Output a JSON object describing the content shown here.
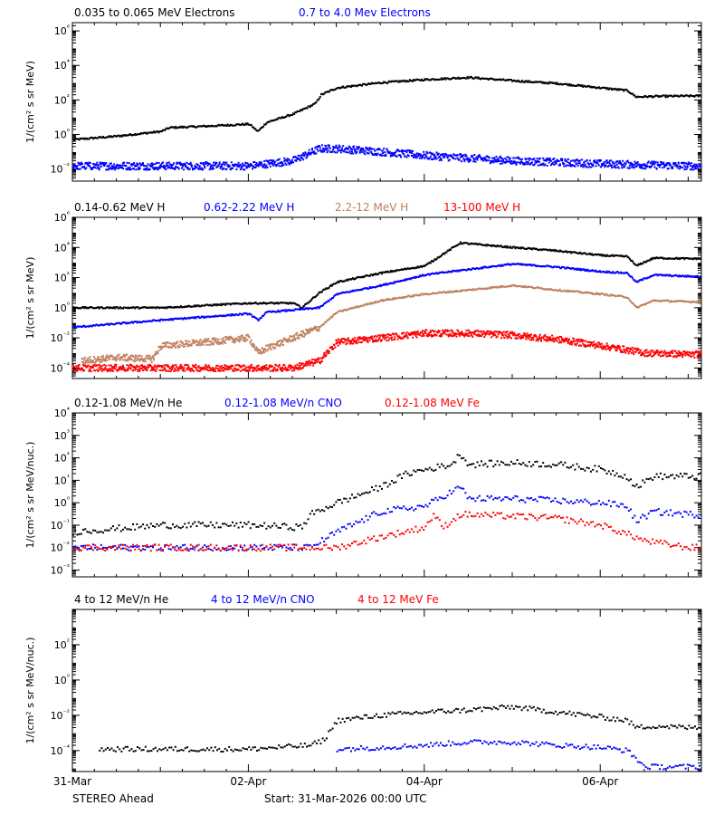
{
  "chart_data": [
    {
      "type": "scatter",
      "id": "electrons",
      "ylabel": "1/(cm² s sr MeV)",
      "yscale": "log",
      "ylim": [
        0.002,
        3000000
      ],
      "y_ticks": [
        {
          "value": 0.01,
          "label": "10⁻²"
        },
        {
          "value": 1,
          "label": "10⁰"
        },
        {
          "value": 100,
          "label": "10²"
        },
        {
          "value": 10000,
          "label": "10⁴"
        },
        {
          "value": 1000000,
          "label": "10⁶"
        }
      ],
      "series": [
        {
          "name": "0.035 to 0.065 MeV Electrons",
          "color": "#000000",
          "points": [
            [
              0,
              0.5
            ],
            [
              0.5,
              0.8
            ],
            [
              1,
              1.5
            ],
            [
              1.1,
              2.5
            ],
            [
              1.5,
              3
            ],
            [
              2,
              4
            ],
            [
              2.1,
              1.5
            ],
            [
              2.2,
              5
            ],
            [
              2.5,
              15
            ],
            [
              2.75,
              60
            ],
            [
              2.82,
              200
            ],
            [
              3,
              500
            ],
            [
              3.5,
              1000
            ],
            [
              4,
              1500
            ],
            [
              4.5,
              2000
            ],
            [
              5,
              1300
            ],
            [
              5.5,
              900
            ],
            [
              6,
              500
            ],
            [
              6.3,
              350
            ],
            [
              6.4,
              150
            ],
            [
              6.6,
              160
            ],
            [
              7,
              170
            ]
          ]
        },
        {
          "name": "0.7 to 4.0 Mev Electrons",
          "color": "#0000ff",
          "points": [
            [
              0,
              0.015
            ],
            [
              1,
              0.015
            ],
            [
              2,
              0.015
            ],
            [
              2.5,
              0.03
            ],
            [
              2.8,
              0.15
            ],
            [
              3,
              0.15
            ],
            [
              3.5,
              0.1
            ],
            [
              4,
              0.06
            ],
            [
              5,
              0.03
            ],
            [
              6,
              0.02
            ],
            [
              7,
              0.015
            ]
          ]
        }
      ]
    },
    {
      "type": "scatter",
      "id": "protons",
      "ylabel": "1/(cm² s sr MeV)",
      "yscale": "log",
      "ylim": [
        2e-05,
        1000000
      ],
      "y_ticks": [
        {
          "value": 0.0001,
          "label": "10⁻⁴"
        },
        {
          "value": 0.01,
          "label": "10⁻²"
        },
        {
          "value": 1,
          "label": "10⁰"
        },
        {
          "value": 100,
          "label": "10²"
        },
        {
          "value": 10000,
          "label": "10⁴"
        },
        {
          "value": 1000000,
          "label": "10⁶"
        }
      ],
      "series": [
        {
          "name": "0.14-0.62 MeV H",
          "color": "#000000",
          "points": [
            [
              0,
              1
            ],
            [
              1,
              1
            ],
            [
              2,
              2
            ],
            [
              2.5,
              2
            ],
            [
              2.6,
              1
            ],
            [
              2.8,
              10
            ],
            [
              3,
              50
            ],
            [
              3.5,
              200
            ],
            [
              4,
              600
            ],
            [
              4.4,
              20000
            ],
            [
              5,
              10000
            ],
            [
              5.5,
              6000
            ],
            [
              6,
              3000
            ],
            [
              6.3,
              2500
            ],
            [
              6.4,
              600
            ],
            [
              6.6,
              2000
            ],
            [
              7,
              1800
            ]
          ]
        },
        {
          "name": "0.62-2.22 MeV H",
          "color": "#0000ff",
          "points": [
            [
              0,
              0.05
            ],
            [
              1,
              0.15
            ],
            [
              2,
              0.4
            ],
            [
              2.1,
              0.15
            ],
            [
              2.2,
              0.5
            ],
            [
              2.8,
              1
            ],
            [
              3,
              8
            ],
            [
              3.5,
              30
            ],
            [
              4,
              150
            ],
            [
              4.4,
              300
            ],
            [
              5,
              800
            ],
            [
              5.5,
              500
            ],
            [
              6,
              250
            ],
            [
              6.3,
              200
            ],
            [
              6.4,
              50
            ],
            [
              6.6,
              150
            ],
            [
              7,
              120
            ]
          ]
        },
        {
          "name": "2.2-12 MeV H",
          "color": "#c08060",
          "points": [
            [
              0.1,
              0.0003
            ],
            [
              0.5,
              0.0005
            ],
            [
              0.9,
              0.0004
            ],
            [
              1,
              0.003
            ],
            [
              1.5,
              0.005
            ],
            [
              2,
              0.01
            ],
            [
              2.1,
              0.001
            ],
            [
              2.2,
              0.002
            ],
            [
              2.5,
              0.01
            ],
            [
              2.8,
              0.05
            ],
            [
              3,
              0.5
            ],
            [
              3.5,
              3
            ],
            [
              4,
              8
            ],
            [
              4.5,
              15
            ],
            [
              5,
              30
            ],
            [
              5.5,
              15
            ],
            [
              6,
              8
            ],
            [
              6.3,
              5
            ],
            [
              6.4,
              1
            ],
            [
              6.6,
              3
            ],
            [
              7,
              2.5
            ]
          ]
        },
        {
          "name": "13-100 MeV H",
          "color": "#ff0000",
          "points": [
            [
              0,
              0.0001
            ],
            [
              1,
              0.0001
            ],
            [
              2,
              0.0001
            ],
            [
              2.5,
              0.0001
            ],
            [
              2.8,
              0.0003
            ],
            [
              3,
              0.005
            ],
            [
              3.5,
              0.01
            ],
            [
              4,
              0.02
            ],
            [
              4.5,
              0.02
            ],
            [
              5,
              0.015
            ],
            [
              5.5,
              0.008
            ],
            [
              6,
              0.003
            ],
            [
              6.5,
              0.001
            ],
            [
              7,
              0.0008
            ]
          ]
        }
      ]
    },
    {
      "type": "scatter",
      "id": "ions_low",
      "ylabel": "1/(cm² s sr MeV/nuc.)",
      "yscale": "log",
      "ylim": [
        0.0005,
        10000
      ],
      "y_ticks": [
        {
          "value": 0.001,
          "label": "10⁻³"
        },
        {
          "value": 0.01,
          "label": "10⁻²"
        },
        {
          "value": 0.1,
          "label": "10⁻¹"
        },
        {
          "value": 1,
          "label": "10⁰"
        },
        {
          "value": 10,
          "label": "10¹"
        },
        {
          "value": 100,
          "label": "10²"
        },
        {
          "value": 1000,
          "label": "10³"
        },
        {
          "value": 10000,
          "label": "10⁴"
        }
      ],
      "series": [
        {
          "name": "0.12-1.08 MeV/n He",
          "color": "#000000",
          "points": [
            [
              0,
              0.05
            ],
            [
              1,
              0.1
            ],
            [
              2,
              0.1
            ],
            [
              2.6,
              0.08
            ],
            [
              2.7,
              0.3
            ],
            [
              3,
              1
            ],
            [
              3.5,
              5
            ],
            [
              3.8,
              20
            ],
            [
              4,
              30
            ],
            [
              4.3,
              50
            ],
            [
              4.4,
              150
            ],
            [
              4.5,
              50
            ],
            [
              5,
              60
            ],
            [
              5.5,
              50
            ],
            [
              6,
              30
            ],
            [
              6.3,
              15
            ],
            [
              6.4,
              5
            ],
            [
              6.6,
              15
            ],
            [
              7,
              15
            ]
          ]
        },
        {
          "name": "0.12-1.08 MeV/n CNO",
          "color": "#0000ff",
          "points": [
            [
              0,
              0.01
            ],
            [
              1,
              0.01
            ],
            [
              2,
              0.01
            ],
            [
              2.7,
              0.01
            ],
            [
              3,
              0.05
            ],
            [
              3.5,
              0.4
            ],
            [
              4,
              0.7
            ],
            [
              4.4,
              5
            ],
            [
              4.5,
              1.5
            ],
            [
              5,
              1.5
            ],
            [
              6,
              1
            ],
            [
              6.3,
              0.7
            ],
            [
              6.4,
              0.15
            ],
            [
              6.6,
              0.4
            ],
            [
              7,
              0.3
            ]
          ]
        },
        {
          "name": "0.12-1.08 MeV Fe",
          "color": "#ff0000",
          "points": [
            [
              0,
              0.01
            ],
            [
              1,
              0.01
            ],
            [
              2,
              0.01
            ],
            [
              3,
              0.01
            ],
            [
              3.5,
              0.03
            ],
            [
              4,
              0.08
            ],
            [
              4.1,
              0.3
            ],
            [
              4.2,
              0.08
            ],
            [
              4.4,
              0.3
            ],
            [
              5,
              0.25
            ],
            [
              5.5,
              0.2
            ],
            [
              6,
              0.1
            ],
            [
              6.3,
              0.04
            ],
            [
              6.5,
              0.02
            ],
            [
              7,
              0.01
            ]
          ]
        }
      ]
    },
    {
      "type": "scatter",
      "id": "ions_high",
      "ylabel": "1/(cm² s sr MeV/nuc.)",
      "yscale": "log",
      "ylim": [
        6.5e-06,
        10000
      ],
      "y_ticks": [
        {
          "value": 0.0001,
          "label": "10⁻⁴"
        },
        {
          "value": 0.01,
          "label": "10⁻²"
        },
        {
          "value": 1,
          "label": "10⁰"
        },
        {
          "value": 100,
          "label": "10²"
        }
      ],
      "series": [
        {
          "name": "4 to 12 MeV/n He",
          "color": "#000000",
          "points": [
            [
              0.3,
              0.00012
            ],
            [
              1,
              0.00012
            ],
            [
              2,
              0.00012
            ],
            [
              2.7,
              0.0002
            ],
            [
              2.85,
              0.0004
            ],
            [
              3,
              0.005
            ],
            [
              3.5,
              0.01
            ],
            [
              4,
              0.015
            ],
            [
              4.5,
              0.02
            ],
            [
              5,
              0.03
            ],
            [
              5.5,
              0.015
            ],
            [
              6,
              0.008
            ],
            [
              6.3,
              0.005
            ],
            [
              6.4,
              0.002
            ],
            [
              6.6,
              0.0025
            ],
            [
              7,
              0.002
            ]
          ]
        },
        {
          "name": "4 to 12 MeV/n CNO",
          "color": "#0000ff",
          "points": [
            [
              3,
              0.00012
            ],
            [
              3.5,
              0.00015
            ],
            [
              4,
              0.0002
            ],
            [
              4.5,
              0.0003
            ],
            [
              5,
              0.0003
            ],
            [
              5.5,
              0.0002
            ],
            [
              6,
              0.00015
            ],
            [
              6.3,
              0.0001
            ],
            [
              6.5,
              1.2e-05
            ],
            [
              7,
              1.2e-05
            ]
          ]
        },
        {
          "name": "4 to 12 MeV Fe",
          "color": "#ff0000",
          "points": []
        }
      ]
    }
  ],
  "x_axis": {
    "xlim": [
      0,
      7.15
    ],
    "major_ticks": [
      {
        "value": 0,
        "label": "31-Mar"
      },
      {
        "value": 2,
        "label": "02-Apr"
      },
      {
        "value": 4,
        "label": "04-Apr"
      },
      {
        "value": 6,
        "label": "06-Apr"
      }
    ]
  },
  "footer": {
    "spacecraft": "STEREO Ahead",
    "start": "Start: 31-Mar-2026 00:00 UTC"
  }
}
